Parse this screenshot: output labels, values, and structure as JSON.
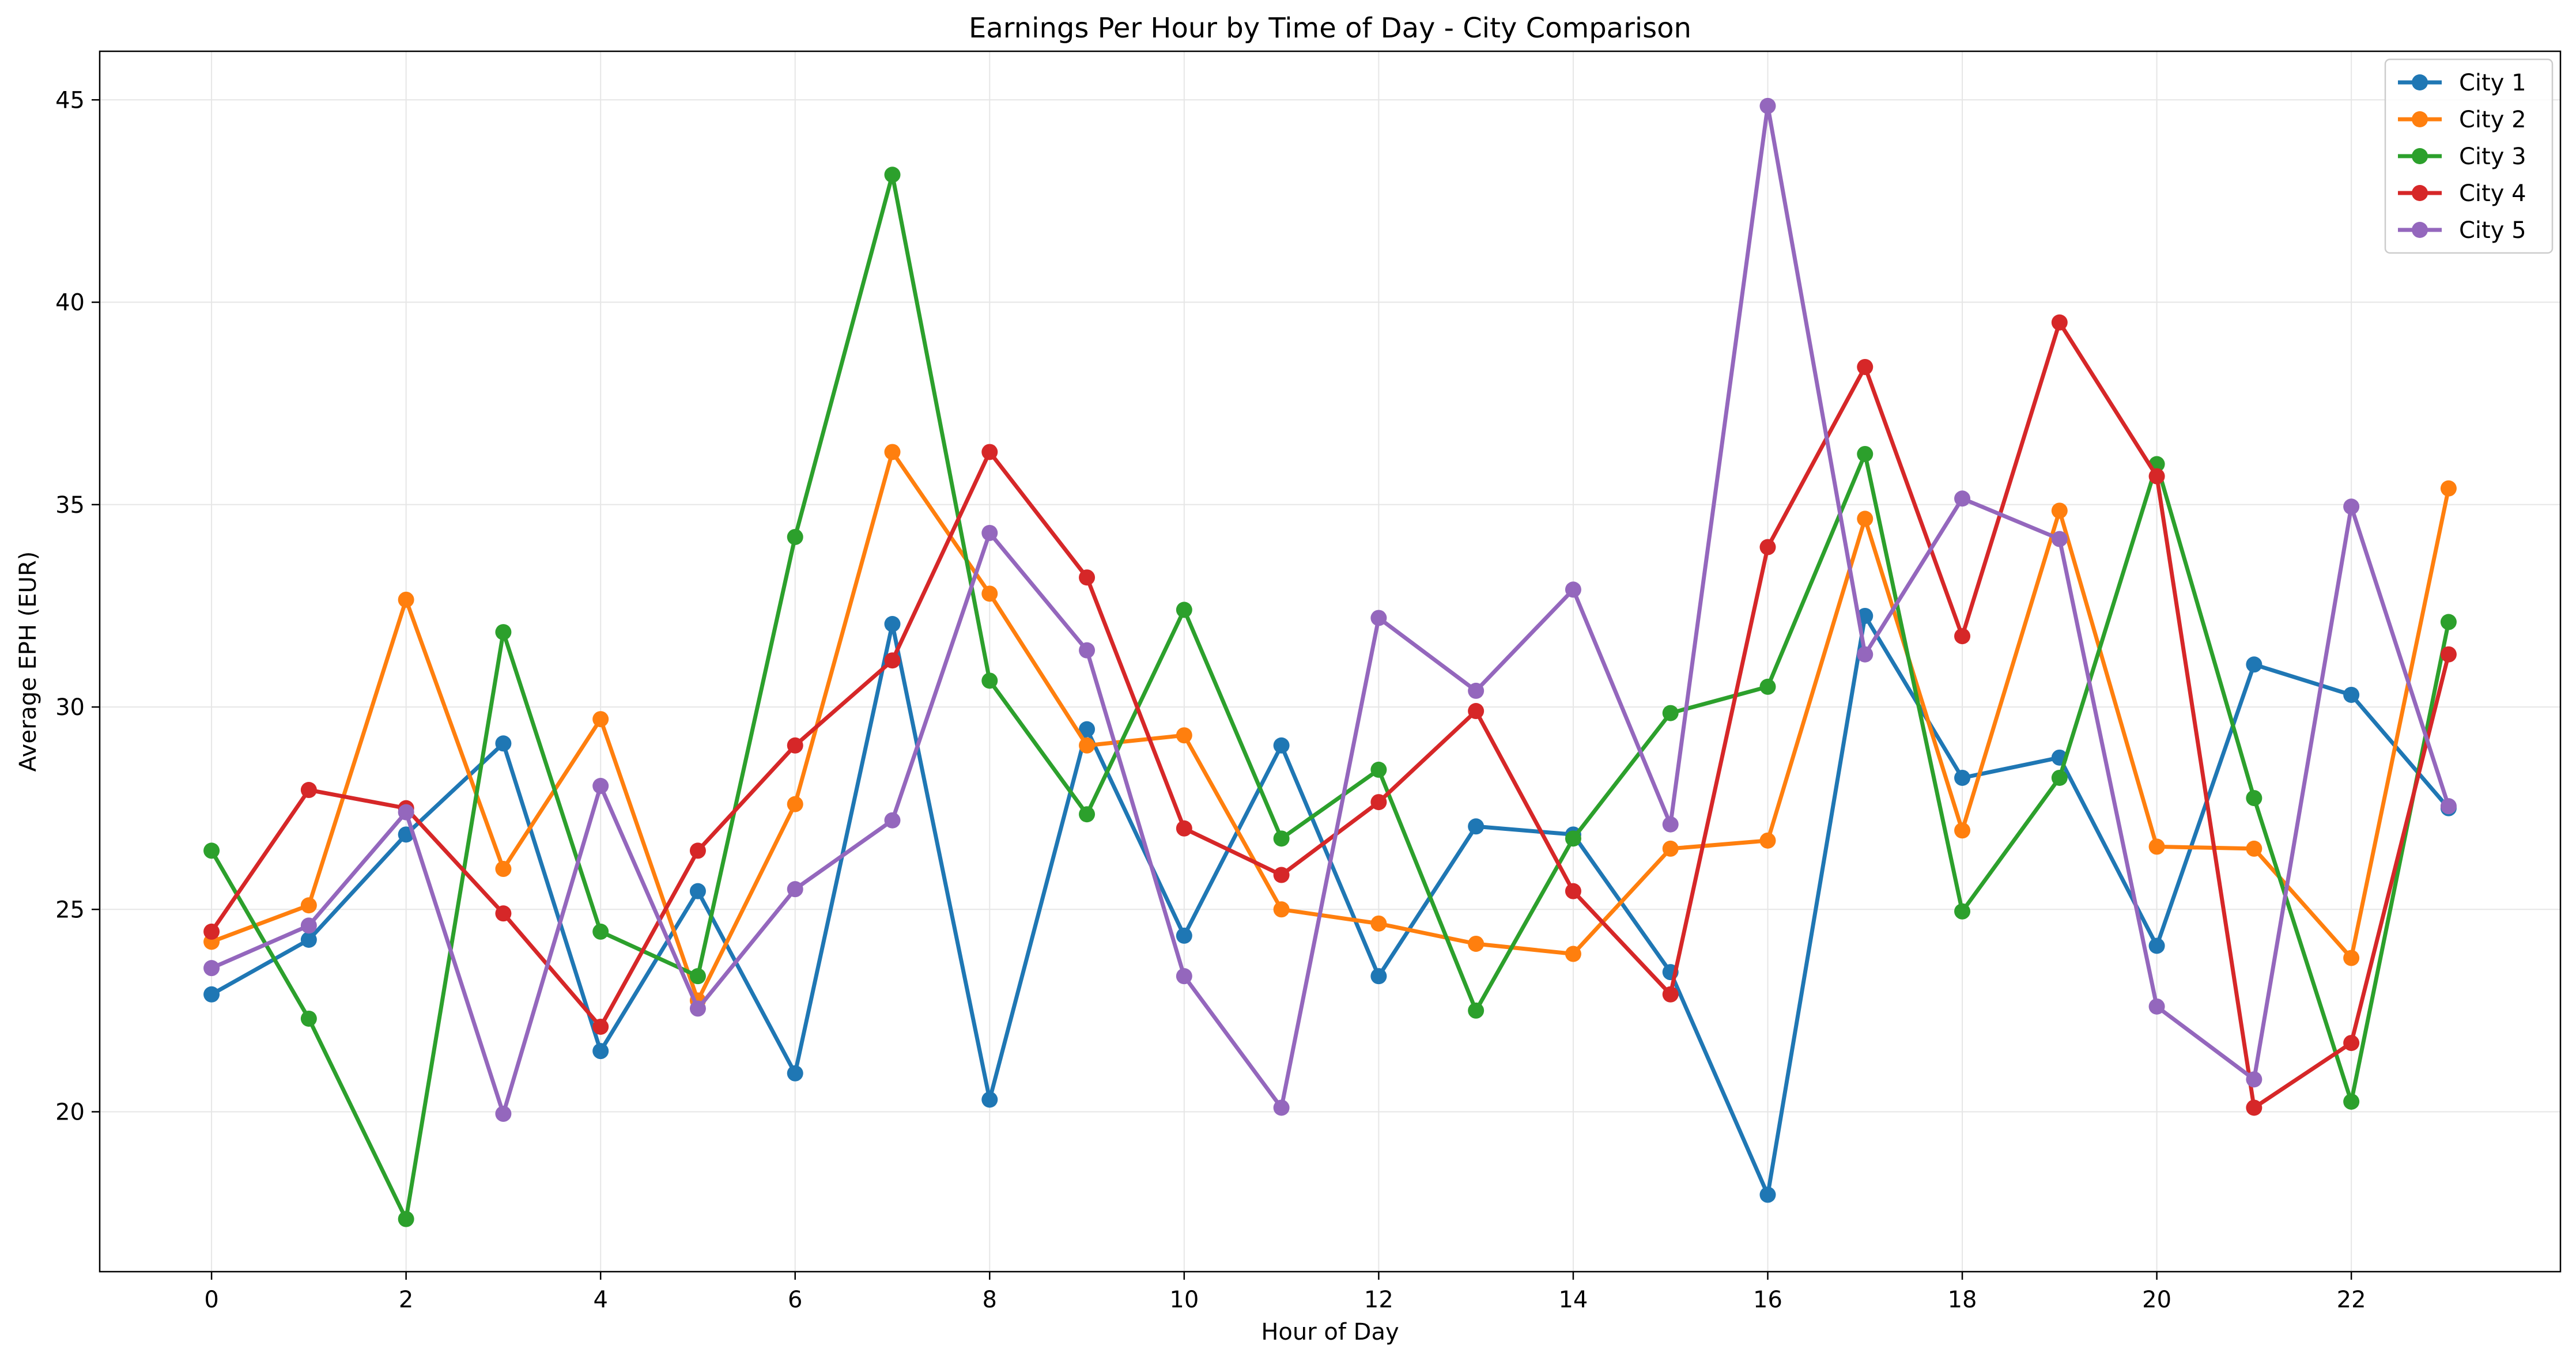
{
  "chart_data": {
    "type": "line",
    "title": "Earnings Per Hour by Time of Day - City Comparison",
    "xlabel": "Hour of Day",
    "ylabel": "Average EPH (EUR)",
    "x": [
      0,
      1,
      2,
      3,
      4,
      5,
      6,
      7,
      8,
      9,
      10,
      11,
      12,
      13,
      14,
      15,
      16,
      17,
      18,
      19,
      20,
      21,
      22,
      23
    ],
    "xlim": [
      -1.15,
      24.15
    ],
    "ylim": [
      16.05,
      46.2
    ],
    "xticks": [
      0,
      2,
      4,
      6,
      8,
      10,
      12,
      14,
      16,
      18,
      20,
      22
    ],
    "yticks": [
      20,
      25,
      30,
      35,
      40,
      45
    ],
    "grid": true,
    "legend_position": "top-right",
    "series": [
      {
        "name": "City 1",
        "color": "#1f77b4",
        "values": [
          22.9,
          24.25,
          26.85,
          29.1,
          21.5,
          25.45,
          20.95,
          32.05,
          20.3,
          29.45,
          24.35,
          29.05,
          23.35,
          27.05,
          26.85,
          23.45,
          17.95,
          32.25,
          28.25,
          28.75,
          24.1,
          31.05,
          30.3,
          27.5
        ]
      },
      {
        "name": "City 2",
        "color": "#ff7f0e",
        "values": [
          24.2,
          25.1,
          32.65,
          26.0,
          29.7,
          22.75,
          27.6,
          36.3,
          32.8,
          29.05,
          29.3,
          25.0,
          24.65,
          24.15,
          23.9,
          26.5,
          26.7,
          34.65,
          26.95,
          34.85,
          26.55,
          26.5,
          23.8,
          35.4
        ]
      },
      {
        "name": "City 3",
        "color": "#2ca02c",
        "values": [
          26.45,
          22.3,
          17.35,
          31.85,
          24.45,
          23.35,
          34.2,
          43.15,
          30.65,
          27.35,
          32.4,
          26.75,
          28.45,
          22.5,
          26.75,
          29.85,
          30.5,
          36.25,
          24.95,
          28.25,
          36.0,
          27.75,
          20.25,
          32.1
        ]
      },
      {
        "name": "City 4",
        "color": "#d62728",
        "values": [
          24.45,
          27.95,
          27.5,
          24.9,
          22.1,
          26.45,
          29.05,
          31.15,
          36.3,
          33.2,
          27.0,
          25.85,
          27.65,
          29.9,
          25.45,
          22.9,
          33.95,
          38.4,
          31.75,
          39.5,
          35.7,
          20.1,
          21.7,
          31.3
        ]
      },
      {
        "name": "City 5",
        "color": "#9467bd",
        "values": [
          23.55,
          24.6,
          27.4,
          19.95,
          28.05,
          22.55,
          25.5,
          27.2,
          34.3,
          31.4,
          23.35,
          20.1,
          32.2,
          30.4,
          32.9,
          27.1,
          44.85,
          31.3,
          35.15,
          34.15,
          22.6,
          20.8,
          34.95,
          27.55
        ]
      }
    ]
  }
}
